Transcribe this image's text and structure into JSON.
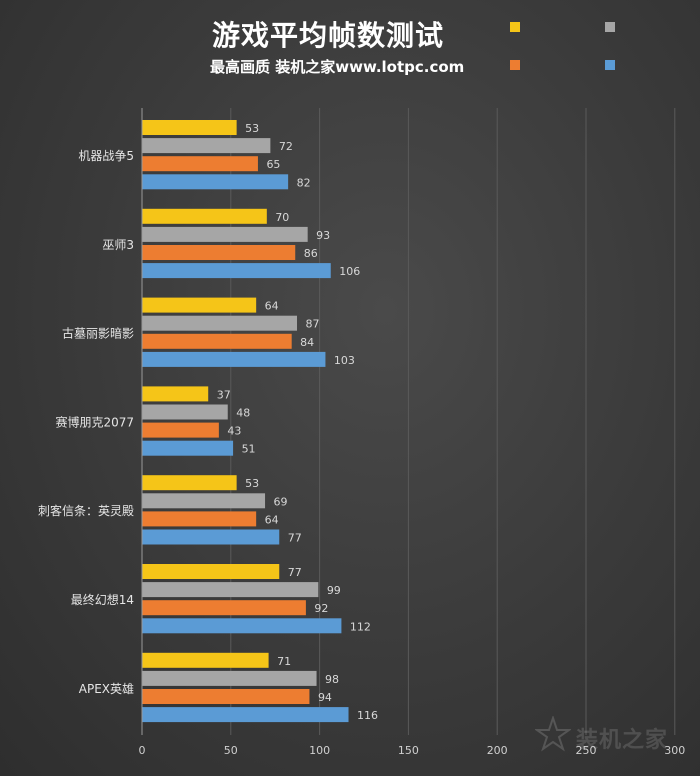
{
  "chart_data": {
    "type": "bar",
    "orientation": "horizontal",
    "title": "游戏平均帧数测试",
    "subtitle": "最高画质 装机之家www.lotpc.com",
    "categories": [
      "机器战争5",
      "巫师3",
      "古墓丽影暗影",
      "赛博朋克2077",
      "刺客信条：英灵殿",
      "最终幻想14",
      "APEX英雄"
    ],
    "series": [
      {
        "name": "",
        "color": "#F5C518",
        "values": [
          53,
          70,
          64,
          37,
          53,
          77,
          71
        ]
      },
      {
        "name": "",
        "color": "#A6A6A6",
        "values": [
          72,
          93,
          87,
          48,
          69,
          99,
          98
        ]
      },
      {
        "name": "",
        "color": "#ED7D31",
        "values": [
          65,
          86,
          84,
          43,
          64,
          92,
          94
        ]
      },
      {
        "name": "",
        "color": "#5B9BD5",
        "values": [
          82,
          106,
          103,
          51,
          77,
          112,
          116
        ]
      }
    ],
    "xlim": [
      0,
      300
    ],
    "xticks": [
      "0",
      "50",
      "100",
      "150",
      "200",
      "250",
      "300"
    ],
    "grid": true,
    "legend_position": "top-right"
  },
  "watermark": "装机之家"
}
